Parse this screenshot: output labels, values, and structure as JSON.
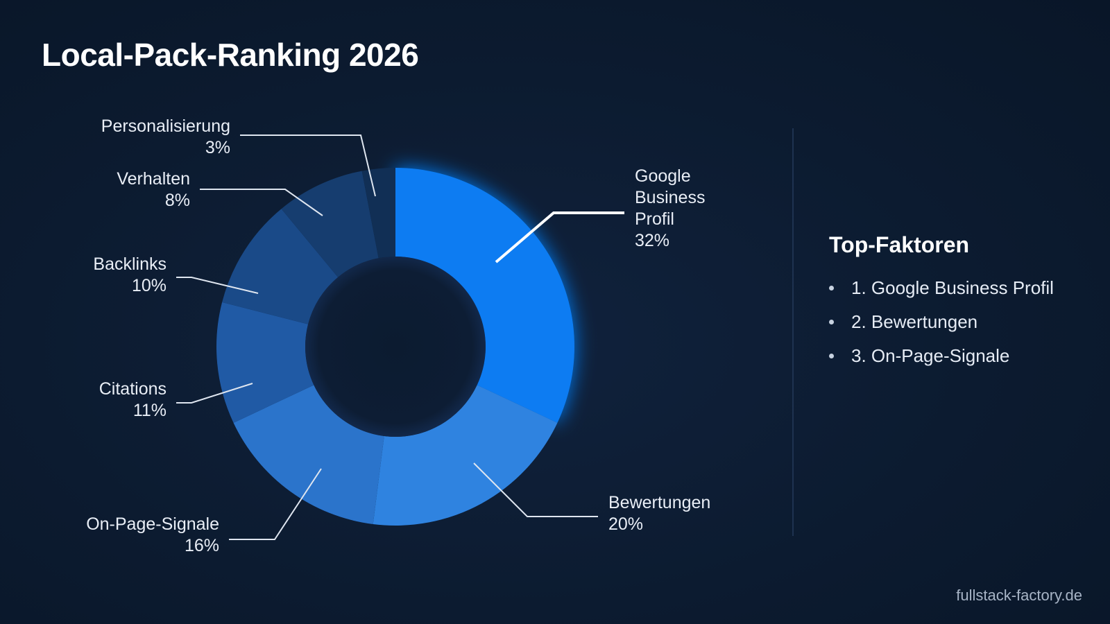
{
  "title": "Local-Pack-Ranking 2026",
  "chart_data": {
    "type": "pie",
    "style": "donut",
    "title": "Local-Pack-Ranking 2026",
    "unit": "%",
    "slices": [
      {
        "label": "Google Business Profil",
        "label_lines": [
          "Google",
          "Business",
          "Profil"
        ],
        "value": 32,
        "display": "32%",
        "color": "#0a7bf2"
      },
      {
        "label": "Bewertungen",
        "label_lines": [
          "Bewertungen"
        ],
        "value": 20,
        "display": "20%",
        "color": "#2f83e0"
      },
      {
        "label": "On-Page-Signale",
        "label_lines": [
          "On-Page-Signale"
        ],
        "value": 16,
        "display": "16%",
        "color": "#2b74cb"
      },
      {
        "label": "Citations",
        "label_lines": [
          "Citations"
        ],
        "value": 11,
        "display": "11%",
        "color": "#205aa5"
      },
      {
        "label": "Backlinks",
        "label_lines": [
          "Backlinks"
        ],
        "value": 10,
        "display": "10%",
        "color": "#1a4a88"
      },
      {
        "label": "Verhalten",
        "label_lines": [
          "Verhalten"
        ],
        "value": 8,
        "display": "8%",
        "color": "#163d6f"
      },
      {
        "label": "Personalisierung",
        "label_lines": [
          "Personalisierung"
        ],
        "value": 3,
        "display": "3%",
        "color": "#112f55"
      }
    ]
  },
  "sidebar": {
    "title": "Top-Faktoren",
    "items": [
      "1. Google Business Profil",
      "2. Bewertungen",
      "3. On-Page-Signale"
    ]
  },
  "footer": "fullstack-factory.de"
}
